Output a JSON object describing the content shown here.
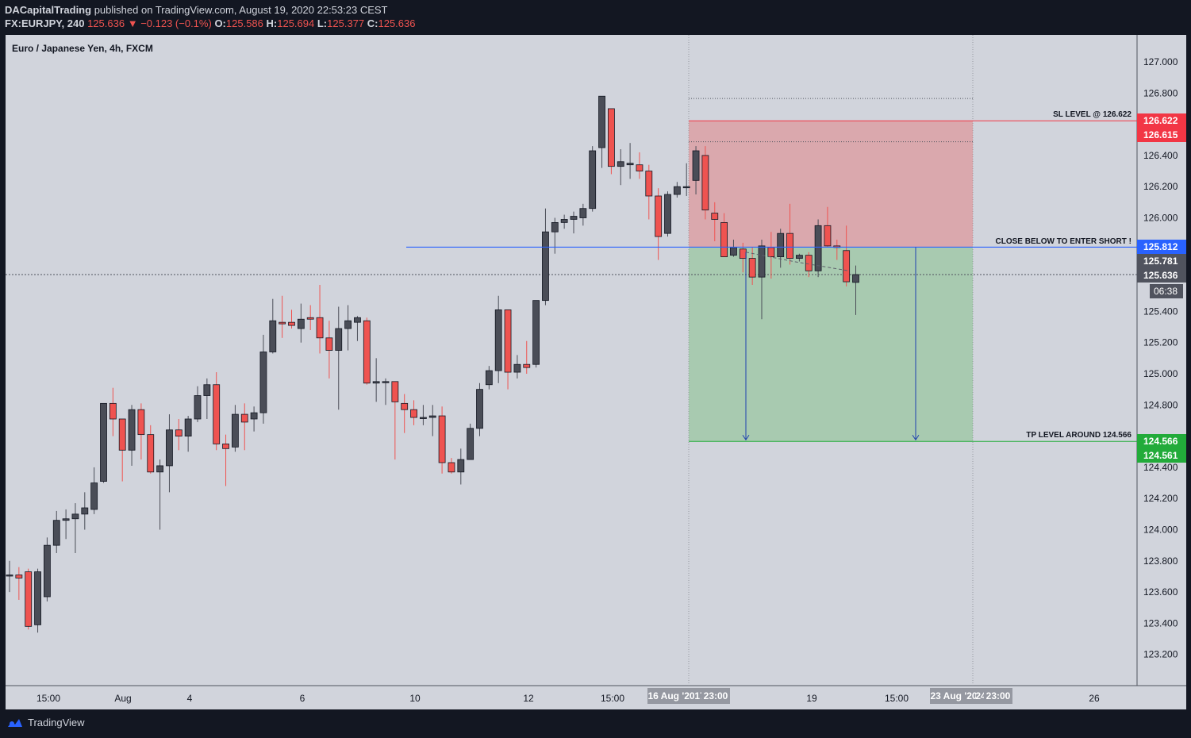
{
  "header": {
    "publisher": "DACapitalTrading",
    "published_text": "published on TradingView.com, August 19, 2020 22:53:23 CEST",
    "symbol": "FX:EURJPY, 240",
    "last": "125.636",
    "change_arrow": "▼",
    "change": "−0.123 (−0.1%)",
    "o_label": "O:",
    "o_value": "125.586",
    "h_label": "H:",
    "h_value": "125.694",
    "l_label": "L:",
    "l_value": "125.377",
    "c_label": "C:",
    "c_value": "125.636"
  },
  "chart": {
    "legend_title": "Euro / Japanese Yen, 4h, FXCM",
    "price_ticks": [
      "127.000",
      "126.800",
      "126.400",
      "126.200",
      "126.000",
      "125.400",
      "125.200",
      "125.000",
      "124.800",
      "124.400",
      "124.200",
      "124.000",
      "123.800",
      "123.600",
      "123.400",
      "123.200"
    ],
    "time_labels": [
      {
        "text": "15:00",
        "x": 61
      },
      {
        "text": "Aug",
        "x": 155
      },
      {
        "text": "4",
        "x": 239
      },
      {
        "text": "6",
        "x": 381
      },
      {
        "text": "10",
        "x": 523
      },
      {
        "text": "12",
        "x": 666
      },
      {
        "text": "15:00",
        "x": 772
      },
      {
        "text": "19",
        "x": 1023
      },
      {
        "text": "15:00",
        "x": 1130
      },
      {
        "text": "26",
        "x": 1379
      }
    ],
    "time_badges": [
      {
        "text": "16 Aug '20",
        "x": 816,
        "w": 60
      },
      {
        "text": "17",
        "x": 876,
        "w": 12
      },
      {
        "text": "23:00",
        "x": 884,
        "w": 36
      },
      {
        "text": "23 Aug '20",
        "x": 1172,
        "w": 60
      },
      {
        "text": "24",
        "x": 1230,
        "w": 12
      },
      {
        "text": "23:00",
        "x": 1240,
        "w": 36
      }
    ],
    "sl_label": "SL LEVEL @ 126.622",
    "entry_label": "CLOSE BELOW TO ENTER SHORT !",
    "tp_label": "TP LEVEL AROUND 124.566",
    "price_badges": [
      {
        "text": "126.622",
        "color": "#f23645",
        "value": 126.622
      },
      {
        "text": "126.615",
        "color": "#f23645",
        "value": 126.615
      },
      {
        "text": "125.812",
        "color": "#2962ff",
        "value": 125.812
      },
      {
        "text": "125.781",
        "color": "#50535e",
        "value": 125.781
      },
      {
        "text": "125.636",
        "color": "#50535e",
        "value": 125.636
      },
      {
        "text": "124.566",
        "color": "#22ab3a",
        "value": 124.566
      },
      {
        "text": "124.561",
        "color": "#22ab3a",
        "value": 124.561
      }
    ],
    "countdown": "06:38",
    "colors": {
      "up": "#4a4d57",
      "down": "#ef5350",
      "sl_zone": "#e57373",
      "tp_zone": "#66bb6a",
      "entry_line": "#2962ff",
      "arrow": "#1e40af",
      "bg": "#d1d4dc"
    }
  },
  "chart_data": {
    "type": "candlestick",
    "symbol": "FX:EURJPY",
    "interval": "4h",
    "ylim": [
      123.05,
      127.2
    ],
    "levels": {
      "stop_loss": 126.622,
      "entry": 125.812,
      "take_profit": 124.566,
      "last": 125.636
    },
    "candles": [
      [
        123.71,
        123.71,
        123.8,
        123.6
      ],
      [
        123.71,
        123.69,
        123.76,
        123.55
      ],
      [
        123.73,
        123.38,
        123.75,
        123.36
      ],
      [
        123.39,
        123.73,
        123.75,
        123.34
      ],
      [
        123.57,
        123.9,
        123.95,
        123.54
      ],
      [
        123.9,
        124.06,
        124.12,
        123.85
      ],
      [
        124.06,
        124.07,
        124.13,
        123.94
      ],
      [
        124.07,
        124.1,
        124.17,
        123.85
      ],
      [
        124.1,
        124.14,
        124.24,
        124.0
      ],
      [
        124.13,
        124.3,
        124.4,
        124.1
      ],
      [
        124.31,
        124.81,
        124.81,
        124.3
      ],
      [
        124.81,
        124.71,
        124.91,
        124.6
      ],
      [
        124.71,
        124.51,
        124.71,
        124.31
      ],
      [
        124.51,
        124.77,
        124.8,
        124.41
      ],
      [
        124.77,
        124.61,
        124.81,
        124.45
      ],
      [
        124.61,
        124.37,
        124.67,
        124.36
      ],
      [
        124.37,
        124.41,
        124.45,
        124.0
      ],
      [
        124.41,
        124.64,
        124.74,
        124.24
      ],
      [
        124.64,
        124.6,
        124.71,
        124.51
      ],
      [
        124.6,
        124.71,
        124.73,
        124.5
      ],
      [
        124.71,
        124.86,
        124.92,
        124.69
      ],
      [
        124.86,
        124.93,
        124.97,
        124.71
      ],
      [
        124.93,
        124.55,
        125.01,
        124.51
      ],
      [
        124.55,
        124.52,
        124.61,
        124.28
      ],
      [
        124.53,
        124.74,
        124.8,
        124.5
      ],
      [
        124.74,
        124.69,
        124.81,
        124.51
      ],
      [
        124.71,
        124.75,
        124.79,
        124.63
      ],
      [
        124.75,
        125.14,
        125.25,
        124.68
      ],
      [
        125.14,
        125.34,
        125.48,
        125.13
      ],
      [
        125.33,
        125.32,
        125.5,
        125.23
      ],
      [
        125.33,
        125.31,
        125.41,
        125.29
      ],
      [
        125.29,
        125.35,
        125.45,
        125.2
      ],
      [
        125.36,
        125.35,
        125.44,
        125.28
      ],
      [
        125.36,
        125.23,
        125.57,
        125.13
      ],
      [
        125.23,
        125.15,
        125.34,
        124.97
      ],
      [
        125.15,
        125.29,
        125.43,
        124.77
      ],
      [
        125.29,
        125.34,
        125.44,
        125.15
      ],
      [
        125.33,
        125.36,
        125.37,
        125.21
      ],
      [
        125.34,
        124.94,
        125.36,
        124.93
      ],
      [
        124.94,
        124.95,
        125.1,
        124.82
      ],
      [
        124.95,
        124.95,
        124.97,
        124.8
      ],
      [
        124.95,
        124.82,
        124.95,
        124.45
      ],
      [
        124.81,
        124.77,
        124.87,
        124.62
      ],
      [
        124.77,
        124.72,
        124.83,
        124.67
      ],
      [
        124.72,
        124.72,
        124.8,
        124.67
      ],
      [
        124.72,
        124.73,
        124.8,
        124.6
      ],
      [
        124.73,
        124.43,
        124.79,
        124.36
      ],
      [
        124.43,
        124.37,
        124.46,
        124.36
      ],
      [
        124.37,
        124.45,
        124.52,
        124.29
      ],
      [
        124.45,
        124.65,
        124.68,
        124.48
      ],
      [
        124.65,
        124.9,
        124.94,
        124.6
      ],
      [
        124.93,
        125.02,
        125.05,
        124.9
      ],
      [
        125.02,
        125.41,
        125.5,
        124.94
      ],
      [
        125.41,
        125.01,
        125.41,
        124.9
      ],
      [
        125.01,
        125.06,
        125.12,
        124.97
      ],
      [
        125.06,
        125.04,
        125.21,
        125.0
      ],
      [
        125.06,
        125.47,
        125.47,
        125.04
      ],
      [
        125.47,
        125.91,
        126.06,
        125.44
      ],
      [
        125.91,
        125.97,
        126.0,
        125.77
      ],
      [
        125.97,
        125.99,
        126.02,
        125.93
      ],
      [
        125.99,
        126.01,
        126.04,
        125.9
      ],
      [
        126.0,
        126.06,
        126.09,
        125.95
      ],
      [
        126.06,
        126.43,
        126.46,
        126.04
      ],
      [
        126.45,
        126.78,
        126.75,
        126.32
      ],
      [
        126.7,
        126.33,
        126.7,
        126.28
      ],
      [
        126.33,
        126.36,
        126.44,
        126.21
      ],
      [
        126.34,
        126.35,
        126.48,
        126.25
      ],
      [
        126.34,
        126.3,
        126.42,
        126.25
      ],
      [
        126.3,
        126.14,
        126.34,
        125.99
      ],
      [
        126.14,
        125.88,
        126.19,
        125.73
      ],
      [
        125.9,
        126.15,
        126.17,
        125.88
      ],
      [
        126.15,
        126.2,
        126.23,
        126.13
      ],
      [
        126.2,
        126.2,
        126.35,
        126.14
      ],
      [
        126.24,
        126.43,
        126.46,
        126.15
      ],
      [
        126.4,
        126.05,
        126.46,
        125.99
      ],
      [
        126.03,
        125.99,
        126.1,
        125.85
      ],
      [
        125.97,
        125.75,
        126.03,
        125.75
      ],
      [
        125.76,
        125.81,
        125.86,
        125.75
      ],
      [
        125.8,
        125.74,
        125.84,
        125.65
      ],
      [
        125.74,
        125.62,
        125.81,
        125.57
      ],
      [
        125.62,
        125.82,
        125.86,
        125.35
      ],
      [
        125.81,
        125.75,
        125.91,
        125.61
      ],
      [
        125.75,
        125.9,
        125.93,
        125.68
      ],
      [
        125.9,
        125.74,
        126.09,
        125.7
      ],
      [
        125.74,
        125.76,
        125.77,
        125.72
      ],
      [
        125.76,
        125.66,
        125.78,
        125.62
      ],
      [
        125.66,
        125.95,
        125.99,
        125.62
      ],
      [
        125.95,
        125.82,
        126.07,
        125.81
      ],
      [
        125.82,
        125.81,
        125.86,
        125.73
      ],
      [
        125.79,
        125.59,
        125.95,
        125.56
      ],
      [
        125.586,
        125.636,
        125.694,
        125.377
      ]
    ]
  }
}
